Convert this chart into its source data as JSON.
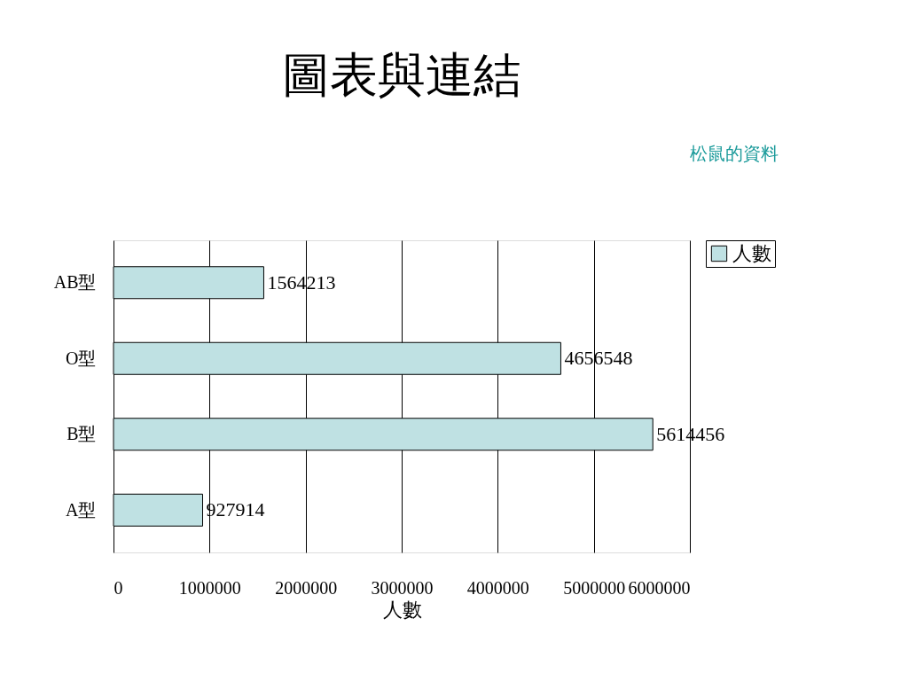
{
  "chart_data": {
    "type": "bar",
    "orientation": "horizontal",
    "title": "圖表與連結",
    "annotations": [
      "松鼠的資料"
    ],
    "xlabel": "人數",
    "categories": [
      "AB型",
      "O型",
      "B型",
      "A型"
    ],
    "series": [
      {
        "name": "人數",
        "color": "#bfe1e3",
        "values": [
          1564213,
          4656548,
          5614456,
          927914
        ]
      }
    ],
    "xlim": [
      0,
      6000000
    ],
    "xticks": [
      0,
      1000000,
      2000000,
      3000000,
      4000000,
      5000000,
      6000000
    ],
    "grid": "x",
    "legend": "right",
    "data_labels": true
  }
}
